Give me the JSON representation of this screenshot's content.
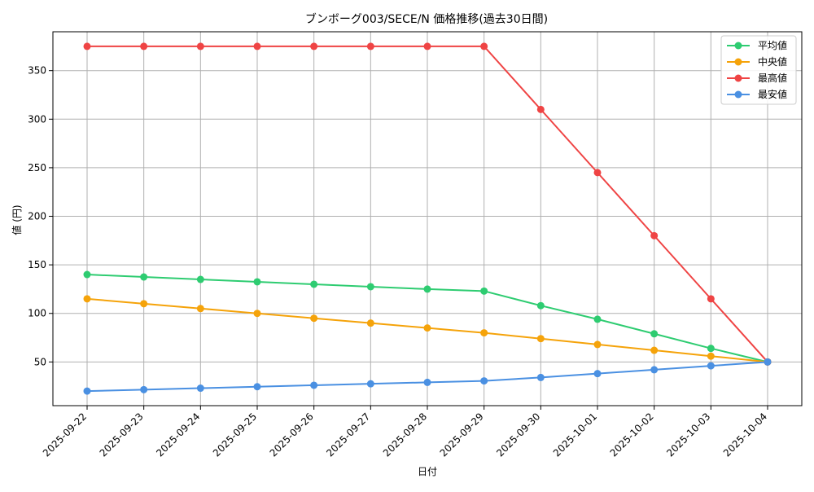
{
  "chart_data": {
    "type": "line",
    "title": "ブンボーグ003/SECE/N 価格推移(過去30日間)",
    "xlabel": "日付",
    "ylabel": "値 (円)",
    "categories": [
      "2025-09-22",
      "2025-09-23",
      "2025-09-24",
      "2025-09-25",
      "2025-09-26",
      "2025-09-27",
      "2025-09-28",
      "2025-09-29",
      "2025-09-30",
      "2025-10-01",
      "2025-10-02",
      "2025-10-03",
      "2025-10-04"
    ],
    "ylim": [
      5,
      390
    ],
    "yticks": [
      50,
      100,
      150,
      200,
      250,
      300,
      350
    ],
    "grid": true,
    "legend_position": "top-right",
    "series": [
      {
        "name": "平均値",
        "color": "#2ecc71",
        "values": [
          140,
          137.5,
          135,
          132.5,
          130,
          127.5,
          125,
          123,
          108,
          94,
          79,
          64,
          50
        ]
      },
      {
        "name": "中央値",
        "color": "#f5a30a",
        "values": [
          115,
          110,
          105,
          100,
          95,
          90,
          85,
          80,
          74,
          68,
          62,
          56,
          50
        ]
      },
      {
        "name": "最高値",
        "color": "#ef4444",
        "values": [
          375,
          375,
          375,
          375,
          375,
          375,
          375,
          375,
          310,
          245,
          180,
          115,
          50
        ]
      },
      {
        "name": "最安値",
        "color": "#4a90e2",
        "values": [
          20,
          21.5,
          23,
          24.5,
          26,
          27.5,
          29,
          30.5,
          34,
          38,
          42,
          46,
          50
        ]
      }
    ]
  }
}
